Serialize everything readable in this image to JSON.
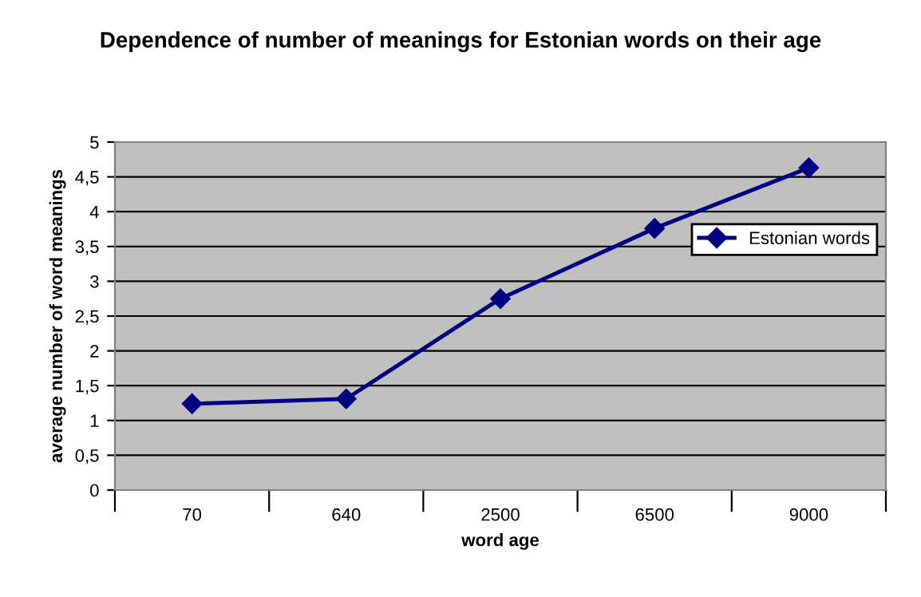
{
  "chart_data": {
    "type": "line",
    "title": "Dependence of number of meanings for Estonian words on their age",
    "xlabel": "word age",
    "ylabel": "average number of word meanings",
    "categories": [
      "70",
      "640",
      "2500",
      "6500",
      "9000"
    ],
    "series": [
      {
        "name": "Estonian words",
        "color": "#000080",
        "values": [
          1.24,
          1.31,
          2.75,
          3.76,
          4.63
        ]
      }
    ],
    "ylim": [
      0,
      5
    ],
    "yticks": [
      0,
      {
        "value": 0.5,
        "label": "0,5"
      },
      1,
      {
        "value": 1.5,
        "label": "1,5"
      },
      2,
      {
        "value": 2.5,
        "label": "2,5"
      },
      3,
      {
        "value": 3.5,
        "label": "3,5"
      },
      4,
      {
        "value": 4.5,
        "label": "4,5"
      },
      5
    ],
    "grid": "y",
    "legend": "right",
    "marker": "diamond",
    "line_style": "solid"
  }
}
